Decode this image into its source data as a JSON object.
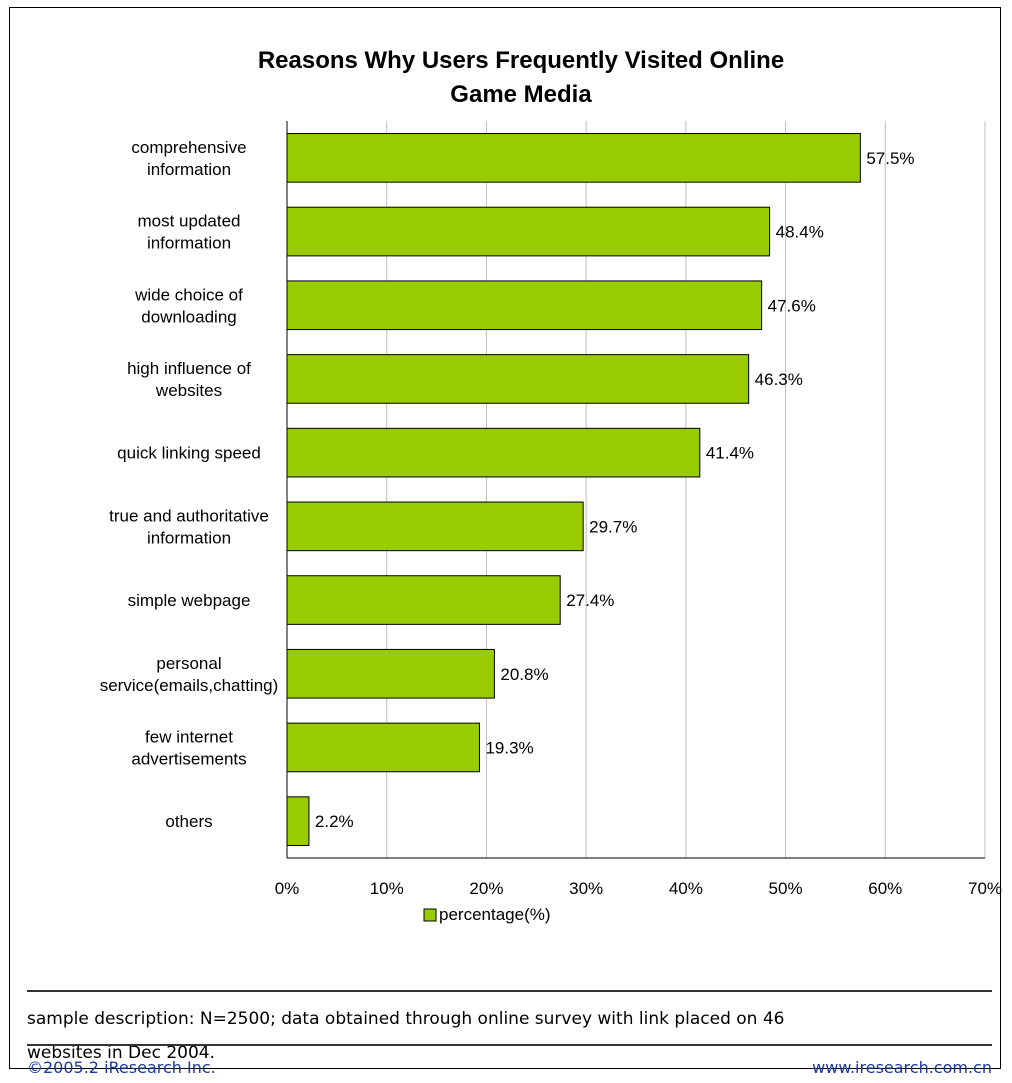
{
  "chart_data": {
    "type": "bar",
    "orientation": "horizontal",
    "title_lines": [
      "Reasons Why Users Frequently Visited Online",
      "Game Media"
    ],
    "categories": [
      [
        "comprehensive",
        "information"
      ],
      [
        "most updated",
        "information"
      ],
      [
        "wide choice of",
        "downloading"
      ],
      [
        "high influence of",
        "websites"
      ],
      [
        "quick linking speed"
      ],
      [
        "true and authoritative",
        "information"
      ],
      [
        "simple webpage"
      ],
      [
        "personal",
        "service(emails,chatting)"
      ],
      [
        "few internet",
        "advertisements"
      ],
      [
        "others"
      ]
    ],
    "series": [
      {
        "name": "percentage(%)",
        "values": [
          57.5,
          48.4,
          47.6,
          46.3,
          41.4,
          29.7,
          27.4,
          20.8,
          19.3,
          2.2
        ],
        "value_labels": [
          "57.5%",
          "48.4%",
          "47.6%",
          "46.3%",
          "41.4%",
          "29.7%",
          "27.4%",
          "20.8%",
          "19.3%",
          "2.2%"
        ]
      }
    ],
    "xlim": [
      0,
      70
    ],
    "x_ticks": [
      0,
      10,
      20,
      30,
      40,
      50,
      60,
      70
    ],
    "x_tick_labels": [
      "0%",
      "10%",
      "20%",
      "30%",
      "40%",
      "50%",
      "60%",
      "70%"
    ],
    "grid": true,
    "legend_position": "bottom",
    "colors": {
      "bar_fill": "#99cc00",
      "bar_stroke": "#000000",
      "grid": "#c0c0c0",
      "footer_text": "#1a3aa0"
    }
  },
  "note": {
    "lines": [
      "sample description: N=2500; data obtained through online survey with link placed on 46",
      "websites in Dec 2004."
    ]
  },
  "footer": {
    "copyright": "©2005.2 iResearch Inc.",
    "website": "www.iresearch.com.cn"
  }
}
